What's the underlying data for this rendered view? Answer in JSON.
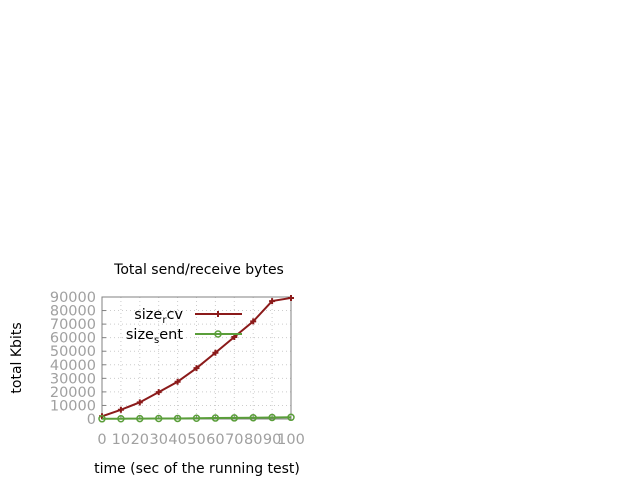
{
  "chart_data": {
    "type": "line",
    "title": "Total send/receive bytes",
    "xlabel": "time (sec of the running test)",
    "ylabel": "total Kbits",
    "xlim": [
      0,
      100
    ],
    "ylim": [
      0,
      90000
    ],
    "x_ticks": [
      0,
      10,
      20,
      30,
      40,
      50,
      60,
      70,
      80,
      90,
      100
    ],
    "y_ticks": [
      0,
      10000,
      20000,
      30000,
      40000,
      50000,
      60000,
      70000,
      80000,
      90000
    ],
    "grid": true,
    "legend_position": "top-right",
    "x": [
      0,
      10,
      20,
      30,
      40,
      50,
      60,
      70,
      80,
      90,
      100
    ],
    "series": [
      {
        "name": "size_rcv",
        "legend_base": "size",
        "legend_sub": "r",
        "legend_rest": "cv",
        "color": "#8b1a1a",
        "marker": "plus",
        "values": [
          2000,
          6800,
          12300,
          19800,
          27500,
          37500,
          48900,
          60500,
          72000,
          87000,
          89300
        ]
      },
      {
        "name": "size_sent",
        "legend_base": "size",
        "legend_sub": "s",
        "legend_rest": "ent",
        "color": "#5a9e3a",
        "marker": "circle",
        "values": [
          150,
          200,
          300,
          350,
          400,
          550,
          700,
          800,
          900,
          1100,
          1250
        ]
      }
    ]
  }
}
